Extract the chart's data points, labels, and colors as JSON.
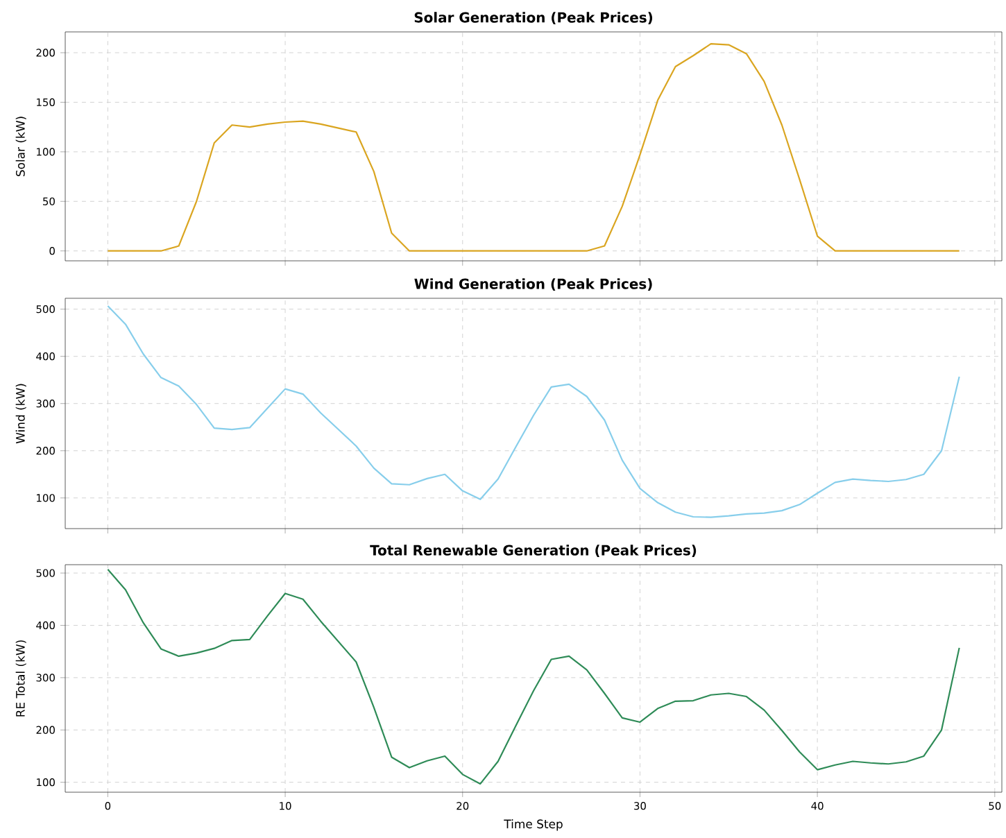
{
  "chart_data": [
    {
      "type": "line",
      "title": "Solar Generation (Peak Prices)",
      "ylabel": "Solar (kW)",
      "x": [
        0,
        1,
        2,
        3,
        4,
        5,
        6,
        7,
        8,
        9,
        10,
        11,
        12,
        13,
        14,
        15,
        16,
        17,
        18,
        19,
        20,
        21,
        22,
        23,
        24,
        25,
        26,
        27,
        28,
        29,
        30,
        31,
        32,
        33,
        34,
        35,
        36,
        37,
        38,
        39,
        40,
        41,
        42,
        43,
        44,
        45,
        46,
        47,
        48
      ],
      "series": [
        {
          "color": "#daa520",
          "values": [
            0,
            0,
            0,
            0,
            5,
            50,
            109,
            127,
            125,
            128,
            130,
            131,
            128,
            124,
            120,
            80,
            18,
            0,
            0,
            0,
            0,
            0,
            0,
            0,
            0,
            0,
            0,
            0,
            5,
            45,
            97,
            152,
            186,
            197,
            209,
            208,
            199,
            171,
            127,
            72,
            15,
            0,
            0,
            0,
            0,
            0,
            0,
            0,
            0
          ]
        }
      ],
      "xlim": [
        -2.4,
        50.4
      ],
      "xticks": [
        0,
        10,
        20,
        30,
        40,
        50
      ],
      "ylim": [
        -10,
        221
      ],
      "yticks": [
        0,
        50,
        100,
        150,
        200
      ],
      "grid": true,
      "tick_labels": "y"
    },
    {
      "type": "line",
      "title": "Wind Generation (Peak Prices)",
      "ylabel": "Wind (kW)",
      "x": [
        0,
        1,
        2,
        3,
        4,
        5,
        6,
        7,
        8,
        9,
        10,
        11,
        12,
        13,
        14,
        15,
        16,
        17,
        18,
        19,
        20,
        21,
        22,
        23,
        24,
        25,
        26,
        27,
        28,
        29,
        30,
        31,
        32,
        33,
        34,
        35,
        36,
        37,
        38,
        39,
        40,
        41,
        42,
        43,
        44,
        45,
        46,
        47,
        48
      ],
      "series": [
        {
          "color": "#87ceeb",
          "values": [
            507,
            468,
            405,
            355,
            337,
            298,
            248,
            245,
            249,
            290,
            331,
            320,
            280,
            245,
            210,
            163,
            130,
            128,
            141,
            150,
            115,
            97,
            140,
            208,
            275,
            335,
            341,
            315,
            265,
            180,
            120,
            90,
            70,
            60,
            59,
            62,
            66,
            68,
            73,
            86,
            110,
            133,
            140,
            137,
            135,
            139,
            150,
            200,
            357
          ]
        }
      ],
      "xlim": [
        -2.4,
        50.4
      ],
      "xticks": [
        0,
        10,
        20,
        30,
        40,
        50
      ],
      "ylim": [
        35,
        523
      ],
      "yticks": [
        100,
        200,
        300,
        400,
        500
      ],
      "grid": true,
      "tick_labels": "y"
    },
    {
      "type": "line",
      "title": "Total Renewable Generation (Peak Prices)",
      "xlabel": "Time Step",
      "ylabel": "RE Total (kW)",
      "x": [
        0,
        1,
        2,
        3,
        4,
        5,
        6,
        7,
        8,
        9,
        10,
        11,
        12,
        13,
        14,
        15,
        16,
        17,
        18,
        19,
        20,
        21,
        22,
        23,
        24,
        25,
        26,
        27,
        28,
        29,
        30,
        31,
        32,
        33,
        34,
        35,
        36,
        37,
        38,
        39,
        40,
        41,
        42,
        43,
        44,
        45,
        46,
        47,
        48
      ],
      "series": [
        {
          "color": "#2e8b57",
          "values": [
            507,
            468,
            405,
            355,
            341,
            347,
            356,
            371,
            373,
            418,
            461,
            450,
            408,
            369,
            330,
            243,
            148,
            128,
            141,
            150,
            115,
            97,
            140,
            208,
            275,
            335,
            341,
            315,
            270,
            223,
            215,
            241,
            255,
            256,
            267,
            270,
            264,
            238,
            199,
            158,
            124,
            133,
            140,
            137,
            135,
            139,
            150,
            200,
            357
          ]
        }
      ],
      "xlim": [
        -2.4,
        50.4
      ],
      "xticks": [
        0,
        10,
        20,
        30,
        40,
        50
      ],
      "ylim": [
        81,
        516
      ],
      "yticks": [
        100,
        200,
        300,
        400,
        500
      ],
      "grid": true
    }
  ]
}
